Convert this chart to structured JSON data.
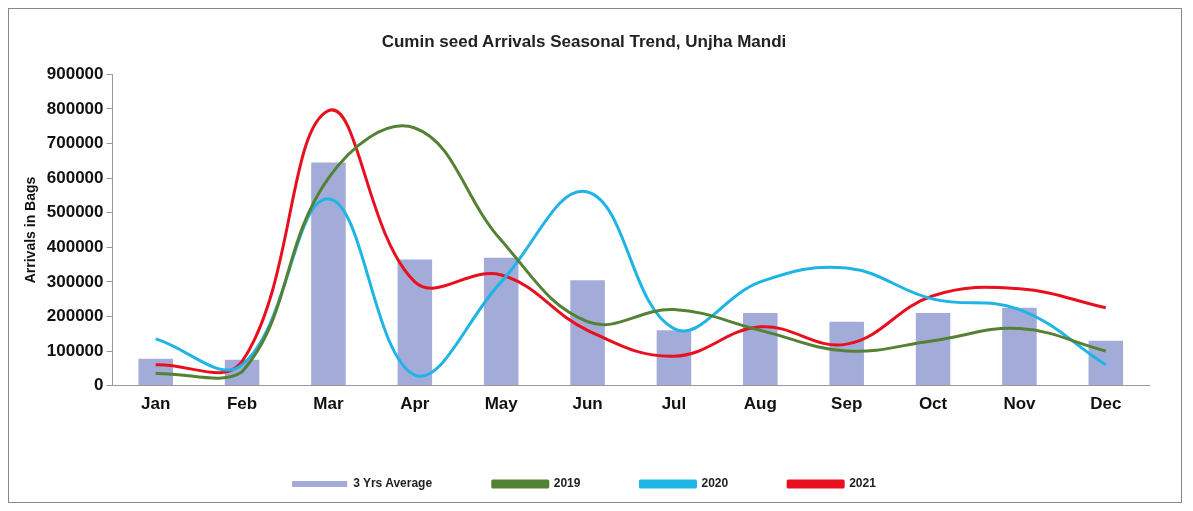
{
  "chart_data": {
    "type": "bar",
    "title": "Cumin seed Arrivals Seasonal Trend, Unjha Mandi",
    "ylabel": "Arrivals in Bags",
    "categories": [
      "Jan",
      "Feb",
      "Mar",
      "Apr",
      "May",
      "Jun",
      "Jul",
      "Aug",
      "Sep",
      "Oct",
      "Nov",
      "Dec"
    ],
    "series": [
      {
        "name": "3 Yrs Average",
        "color": "#a3acd8",
        "values": [
          78000,
          75000,
          645000,
          365000,
          370000,
          305000,
          160000,
          210000,
          185000,
          210000,
          225000,
          130000
        ]
      },
      {
        "name": "2019",
        "type": "line",
        "color": "#548235",
        "values": [
          35000,
          40000,
          600000,
          745000,
          420000,
          185000,
          220000,
          160000,
          100000,
          130000,
          165000,
          100000
        ]
      },
      {
        "name": "2020",
        "type": "line",
        "color": "#1fb4e6",
        "values": [
          135000,
          60000,
          540000,
          30000,
          300000,
          560000,
          165000,
          300000,
          340000,
          250000,
          220000,
          60000
        ]
      },
      {
        "name": "2021",
        "type": "line",
        "color": "#e8101e",
        "values": [
          60000,
          70000,
          795000,
          300000,
          320000,
          160000,
          85000,
          170000,
          120000,
          260000,
          280000,
          225000
        ]
      }
    ],
    "ylim": [
      0,
      900000
    ],
    "yticks": [
      0,
      100000,
      200000,
      300000,
      400000,
      500000,
      600000,
      700000,
      800000,
      900000
    ],
    "grid": false,
    "legend": "bottom",
    "marker": "none",
    "line_style": "solid"
  }
}
